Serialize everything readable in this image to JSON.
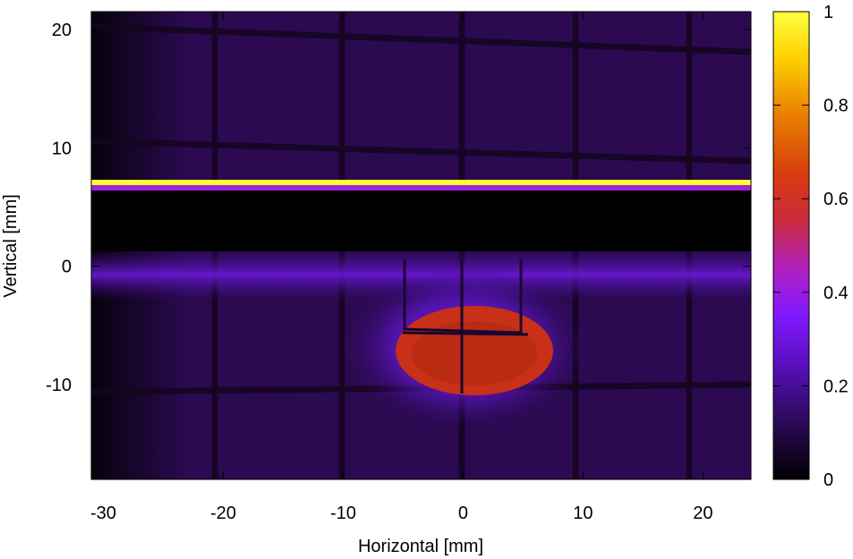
{
  "chart_data": {
    "type": "heatmap",
    "title": "",
    "xlabel": "Horizontal [mm]",
    "ylabel": "Vertical [mm]",
    "xlim": [
      -31,
      24
    ],
    "ylim": [
      -18,
      21.5
    ],
    "x_ticks": [
      -30,
      -20,
      -10,
      0,
      10,
      20
    ],
    "y_ticks": [
      -10,
      0,
      10,
      20
    ],
    "colorbar": {
      "range": [
        0,
        1
      ],
      "ticks": [
        0,
        0.2,
        0.4,
        0.6,
        0.8,
        1
      ],
      "tick_labels": [
        "0",
        "0.2",
        "0.4",
        "0.6",
        "0.8",
        "1"
      ],
      "colormap": [
        "#000000",
        "#3a0c7a",
        "#7010ff",
        "#b01aa0",
        "#d02a10",
        "#e87a00",
        "#ffe000",
        "#ffff60"
      ]
    },
    "grid": false,
    "features": {
      "bright_line_y_mm": 7.2,
      "dark_band_y_mm": [
        1.0,
        6.5
      ],
      "hot_spot_center_mm": [
        0.5,
        -6.5
      ],
      "hot_spot_peak_value": 0.55,
      "background_level": 0.1
    }
  }
}
